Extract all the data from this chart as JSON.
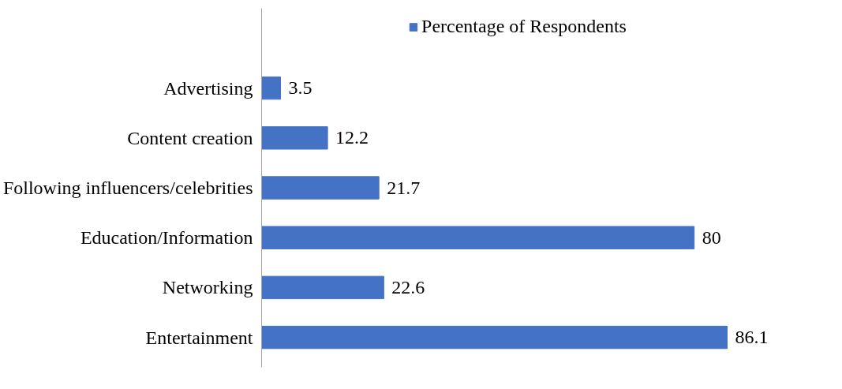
{
  "chart_data": {
    "type": "bar",
    "orientation": "horizontal",
    "categories": [
      "Advertising",
      "Content creation",
      "Following influencers/celebrities",
      "Education/Information",
      "Networking",
      "Entertainment"
    ],
    "series": [
      {
        "name": "Percentage of Respondents",
        "color": "#4472c4",
        "values": [
          3.5,
          12.2,
          21.7,
          80,
          22.6,
          86.1
        ]
      }
    ],
    "data_labels": true,
    "legend": "top",
    "grid": false,
    "tick_labels": "y"
  }
}
